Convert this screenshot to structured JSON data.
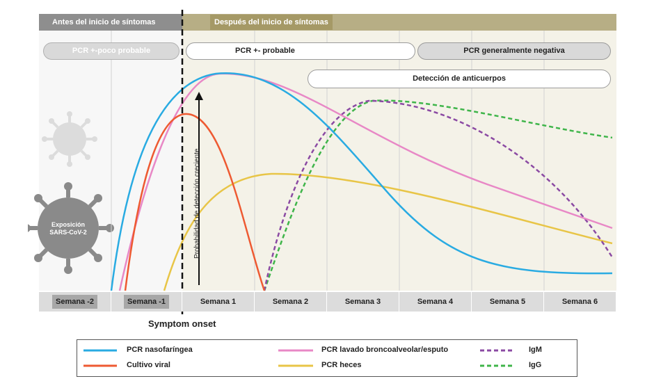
{
  "header": {
    "before_label": "Antes del inicio de síntomas",
    "after_label": "Después del inicio de síntomas"
  },
  "pills": {
    "pcr_low": "PCR +-poco probable",
    "pcr_probable": "PCR +- probable",
    "pcr_negative": "PCR generalmente negativa",
    "antibodies": "Detección de anticuerpos"
  },
  "arrow_label": "Probabilidad de detección creciente",
  "virus_label": [
    "Exposición",
    "SARS-CoV-2"
  ],
  "weeks": [
    "Semana -2",
    "Semana -1",
    "Semana 1",
    "Semana 2",
    "Semana 3",
    "Semana 4",
    "Semana 5",
    "Semana 6"
  ],
  "symptom_onset": "Symptom onset",
  "legend": [
    {
      "label": "PCR nasofaríngea",
      "color": "#29abe2",
      "dash": false
    },
    {
      "label": "PCR lavado broncoalveolar/esputo",
      "color": "#e888c6",
      "dash": false
    },
    {
      "label": "IgM",
      "color": "#8b4aa3",
      "dash": true
    },
    {
      "label": "Cultivo viral",
      "color": "#ee5a32",
      "dash": false
    },
    {
      "label": "PCR heces",
      "color": "#e8c547",
      "dash": false
    },
    {
      "label": "IgG",
      "color": "#3fb54a",
      "dash": true
    }
  ]
}
